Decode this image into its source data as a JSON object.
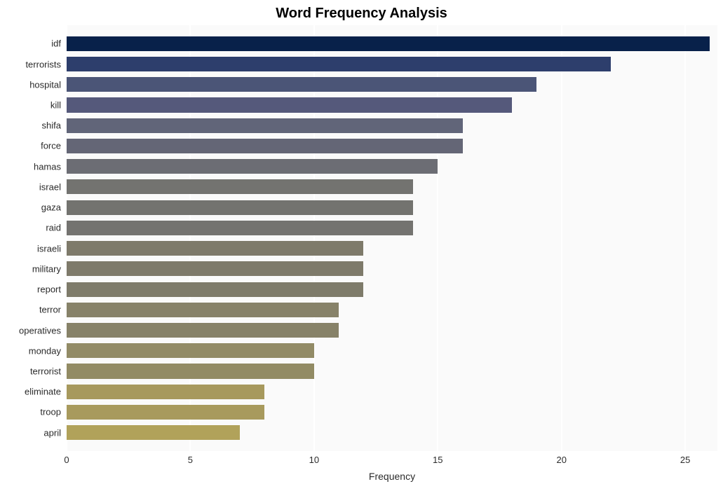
{
  "chart": {
    "type": "bar-horizontal",
    "title": "Word Frequency Analysis",
    "title_fontsize": 20,
    "title_fontweight": 700,
    "xlabel": "Frequency",
    "label_fontsize": 14,
    "xlim": [
      0,
      26.3
    ],
    "xtick_step": 5,
    "xticks": [
      0,
      5,
      10,
      15,
      20,
      25
    ],
    "background_color": "#fafafa",
    "grid_color": "#ffffff",
    "bar_fill_ratio": 0.72,
    "categories": [
      "idf",
      "terrorists",
      "hospital",
      "kill",
      "shifa",
      "force",
      "hamas",
      "israel",
      "gaza",
      "raid",
      "israeli",
      "military",
      "report",
      "terror",
      "operatives",
      "monday",
      "terrorist",
      "eliminate",
      "troop",
      "april"
    ],
    "values": [
      26,
      22,
      19,
      18,
      16,
      16,
      15,
      14,
      14,
      14,
      12,
      12,
      12,
      11,
      11,
      10,
      10,
      8,
      8,
      7
    ],
    "bar_colors": [
      "#08214a",
      "#2d3e6c",
      "#4b5577",
      "#55597b",
      "#616579",
      "#646676",
      "#6c6d74",
      "#737370",
      "#73736f",
      "#747370",
      "#7e7a6a",
      "#7e7a6a",
      "#7e7b6a",
      "#878269",
      "#878268",
      "#928b66",
      "#928b64",
      "#a7995d",
      "#a89a5d",
      "#b1a25a"
    ]
  }
}
